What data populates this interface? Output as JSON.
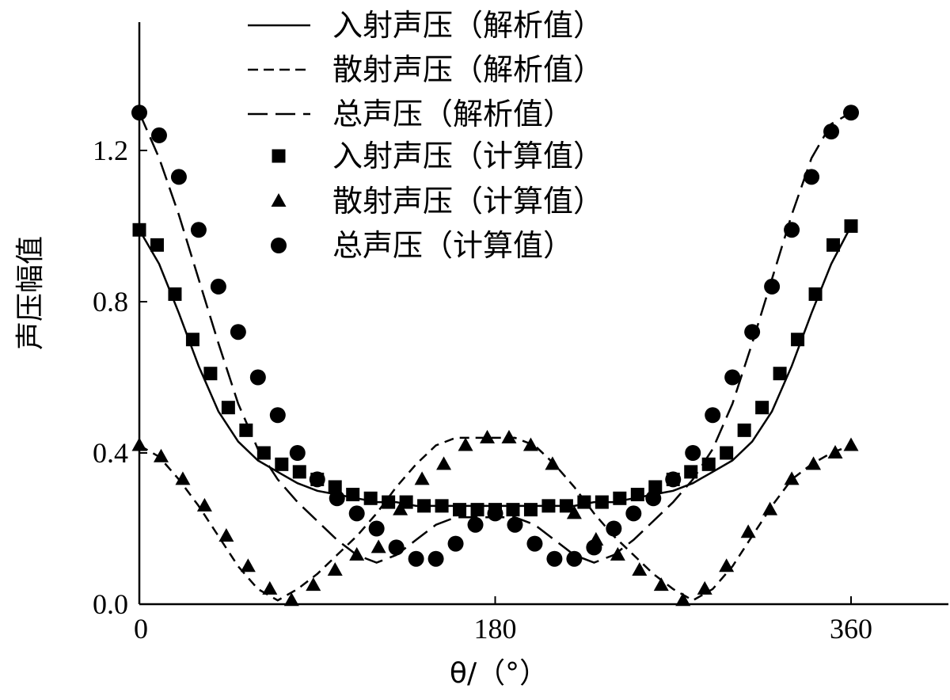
{
  "chart_data": {
    "type": "line",
    "xlabel": "θ/（°）",
    "ylabel": "声压幅值",
    "xlim": [
      0,
      405
    ],
    "ylim": [
      0,
      1.52
    ],
    "x_ticks": [
      0,
      180,
      360
    ],
    "y_ticks": [
      0.0,
      0.4,
      0.8,
      1.2
    ],
    "x_tick_labels": [
      "0",
      "180",
      "360"
    ],
    "y_tick_labels": [
      "0.0",
      "0.4",
      "0.8",
      "1.2"
    ],
    "legend_position": "top-center",
    "grid": false,
    "series": [
      {
        "name": "入射声压（解析值）",
        "style": "solid",
        "x": [
          0,
          10,
          20,
          30,
          40,
          50,
          60,
          70,
          80,
          90,
          100,
          110,
          120,
          130,
          140,
          150,
          160,
          170,
          180,
          190,
          200,
          210,
          220,
          230,
          240,
          250,
          260,
          270,
          280,
          290,
          300,
          310,
          320,
          330,
          340,
          350,
          360
        ],
        "y": [
          0.99,
          0.9,
          0.77,
          0.63,
          0.51,
          0.43,
          0.38,
          0.35,
          0.32,
          0.3,
          0.29,
          0.28,
          0.27,
          0.27,
          0.26,
          0.26,
          0.26,
          0.26,
          0.26,
          0.26,
          0.26,
          0.26,
          0.26,
          0.27,
          0.27,
          0.28,
          0.29,
          0.3,
          0.32,
          0.35,
          0.38,
          0.43,
          0.51,
          0.63,
          0.77,
          0.9,
          1.0
        ]
      },
      {
        "name": "散射声压（解析值）",
        "style": "short-dash",
        "x": [
          0,
          10,
          20,
          30,
          40,
          50,
          60,
          70,
          80,
          90,
          100,
          110,
          120,
          130,
          140,
          150,
          160,
          170,
          180,
          190,
          200,
          210,
          220,
          230,
          240,
          250,
          260,
          270,
          280,
          290,
          300,
          310,
          320,
          330,
          340,
          350,
          360
        ],
        "y": [
          0.42,
          0.39,
          0.33,
          0.26,
          0.18,
          0.1,
          0.04,
          0.01,
          0.04,
          0.08,
          0.13,
          0.18,
          0.24,
          0.31,
          0.37,
          0.42,
          0.44,
          0.44,
          0.44,
          0.44,
          0.42,
          0.37,
          0.31,
          0.24,
          0.18,
          0.13,
          0.08,
          0.04,
          0.01,
          0.04,
          0.1,
          0.18,
          0.26,
          0.33,
          0.37,
          0.4,
          0.42
        ]
      },
      {
        "name": "总声压（解析值）",
        "style": "long-dash",
        "x": [
          0,
          10,
          20,
          30,
          40,
          50,
          60,
          70,
          80,
          90,
          100,
          110,
          120,
          130,
          140,
          150,
          160,
          170,
          180,
          190,
          200,
          210,
          220,
          230,
          240,
          250,
          260,
          270,
          280,
          290,
          300,
          310,
          320,
          330,
          340,
          350,
          360
        ],
        "y": [
          1.3,
          1.18,
          1.03,
          0.86,
          0.69,
          0.53,
          0.41,
          0.33,
          0.27,
          0.22,
          0.17,
          0.13,
          0.11,
          0.13,
          0.17,
          0.21,
          0.23,
          0.23,
          0.23,
          0.23,
          0.21,
          0.17,
          0.13,
          0.11,
          0.13,
          0.17,
          0.22,
          0.27,
          0.33,
          0.41,
          0.53,
          0.69,
          0.86,
          1.03,
          1.18,
          1.27,
          1.3
        ]
      },
      {
        "name": "入射声压（计算值）",
        "marker": "square",
        "x": [
          0,
          9,
          18,
          27,
          36,
          45,
          54,
          63,
          72,
          81,
          90,
          99,
          108,
          117,
          126,
          135,
          144,
          153,
          162,
          171,
          180,
          189,
          198,
          207,
          216,
          225,
          234,
          243,
          252,
          261,
          270,
          279,
          288,
          297,
          306,
          315,
          324,
          333,
          342,
          351,
          360
        ],
        "y": [
          0.99,
          0.95,
          0.82,
          0.7,
          0.61,
          0.52,
          0.46,
          0.4,
          0.37,
          0.35,
          0.33,
          0.31,
          0.29,
          0.28,
          0.27,
          0.27,
          0.26,
          0.26,
          0.25,
          0.25,
          0.25,
          0.25,
          0.25,
          0.26,
          0.26,
          0.27,
          0.27,
          0.28,
          0.29,
          0.31,
          0.33,
          0.35,
          0.37,
          0.4,
          0.46,
          0.52,
          0.61,
          0.7,
          0.82,
          0.95,
          1.0
        ]
      },
      {
        "name": "散射声压（计算值）",
        "marker": "triangle",
        "x": [
          0,
          11,
          22,
          33,
          44,
          55,
          66,
          77,
          88,
          99,
          110,
          121,
          132,
          143,
          154,
          165,
          176,
          187,
          198,
          209,
          220,
          231,
          242,
          253,
          264,
          275,
          286,
          297,
          308,
          319,
          330,
          341,
          352,
          360
        ],
        "y": [
          0.42,
          0.39,
          0.33,
          0.26,
          0.18,
          0.1,
          0.04,
          0.01,
          0.05,
          0.09,
          0.13,
          0.15,
          0.25,
          0.33,
          0.37,
          0.42,
          0.44,
          0.44,
          0.42,
          0.37,
          0.24,
          0.17,
          0.13,
          0.09,
          0.05,
          0.01,
          0.04,
          0.1,
          0.19,
          0.25,
          0.33,
          0.37,
          0.4,
          0.42
        ]
      },
      {
        "name": "总声压（计算值）",
        "marker": "circle",
        "x": [
          0,
          10,
          20,
          30,
          40,
          50,
          60,
          70,
          80,
          90,
          100,
          110,
          120,
          130,
          140,
          150,
          160,
          170,
          180,
          190,
          200,
          210,
          220,
          230,
          240,
          250,
          260,
          270,
          280,
          290,
          300,
          310,
          320,
          330,
          340,
          350,
          360
        ],
        "y": [
          1.3,
          1.24,
          1.13,
          0.99,
          0.84,
          0.72,
          0.6,
          0.5,
          0.4,
          0.33,
          0.28,
          0.24,
          0.2,
          0.15,
          0.12,
          0.12,
          0.16,
          0.21,
          0.24,
          0.21,
          0.16,
          0.12,
          0.12,
          0.15,
          0.2,
          0.24,
          0.28,
          0.33,
          0.4,
          0.5,
          0.6,
          0.72,
          0.84,
          0.99,
          1.13,
          1.25,
          1.3
        ]
      }
    ]
  }
}
